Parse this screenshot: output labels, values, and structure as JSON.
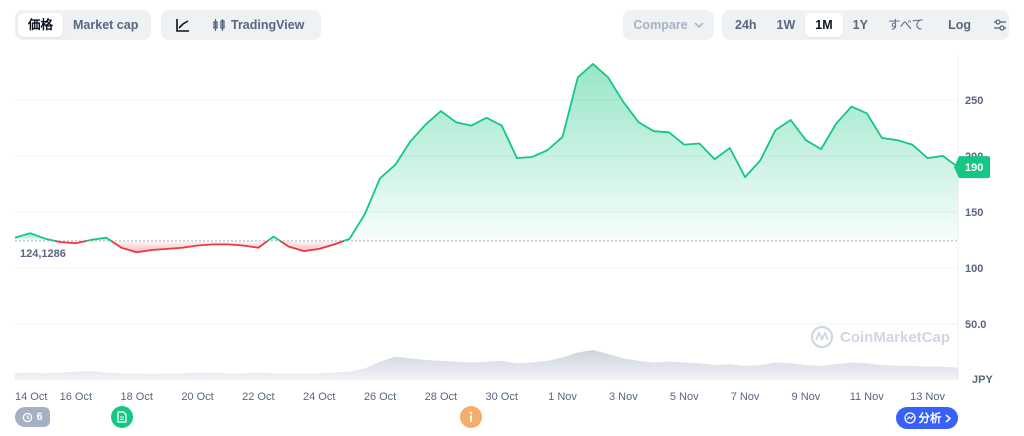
{
  "toolbar": {
    "left_tabs": [
      {
        "label": "価格",
        "active": true
      },
      {
        "label": "Market cap",
        "active": false
      }
    ],
    "view_tabs": [
      {
        "label": "",
        "icon": "line-chart-icon",
        "active": false
      },
      {
        "label": "TradingView",
        "icon": "candlestick-icon",
        "active": false
      }
    ],
    "compare_label": "Compare",
    "range_tabs": [
      {
        "label": "24h",
        "active": false
      },
      {
        "label": "1W",
        "active": false
      },
      {
        "label": "1M",
        "active": true
      },
      {
        "label": "1Y",
        "active": false
      },
      {
        "label": "すべて",
        "active": false
      }
    ],
    "log_label": "Log"
  },
  "events": {
    "history_count": "6",
    "analysis_label": "分析"
  },
  "watermark": "CoinMarketCap",
  "colors": {
    "up": "#16c784",
    "down": "#ea3943",
    "accent": "#3861fb",
    "info": "#f5ad6b"
  },
  "chart_data": {
    "type": "line",
    "currency": "JPY",
    "baseline_label": "124,1286",
    "baseline": 124.1286,
    "current_label": "190",
    "current": 190,
    "ylim": [
      0,
      290
    ],
    "yticks": [
      {
        "value": 50,
        "label": "50.0"
      },
      {
        "value": 100,
        "label": "100"
      },
      {
        "value": 150,
        "label": "150"
      },
      {
        "value": 200,
        "label": "200"
      },
      {
        "value": 250,
        "label": "250"
      }
    ],
    "xlim": [
      "2024-10-14",
      "2024-11-14"
    ],
    "xticks": [
      {
        "date": "2024-10-14",
        "label": "14 Oct"
      },
      {
        "date": "2024-10-16",
        "label": "16 Oct"
      },
      {
        "date": "2024-10-18",
        "label": "18 Oct"
      },
      {
        "date": "2024-10-20",
        "label": "20 Oct"
      },
      {
        "date": "2024-10-22",
        "label": "22 Oct"
      },
      {
        "date": "2024-10-24",
        "label": "24 Oct"
      },
      {
        "date": "2024-10-26",
        "label": "26 Oct"
      },
      {
        "date": "2024-10-28",
        "label": "28 Oct"
      },
      {
        "date": "2024-10-30",
        "label": "30 Oct"
      },
      {
        "date": "2024-11-01",
        "label": "1 Nov"
      },
      {
        "date": "2024-11-03",
        "label": "3 Nov"
      },
      {
        "date": "2024-11-05",
        "label": "5 Nov"
      },
      {
        "date": "2024-11-07",
        "label": "7 Nov"
      },
      {
        "date": "2024-11-09",
        "label": "9 Nov"
      },
      {
        "date": "2024-11-11",
        "label": "11 Nov"
      },
      {
        "date": "2024-11-13",
        "label": "13 Nov"
      }
    ],
    "series": [
      {
        "x": [
          "2024-10-14 00:00",
          "2024-10-14 12:00",
          "2024-10-15 00:00",
          "2024-10-15 12:00",
          "2024-10-16 00:00",
          "2024-10-16 12:00",
          "2024-10-17 00:00",
          "2024-10-17 12:00",
          "2024-10-18 00:00",
          "2024-10-18 12:00",
          "2024-10-19 00:00",
          "2024-10-19 12:00",
          "2024-10-20 00:00",
          "2024-10-20 12:00",
          "2024-10-21 00:00",
          "2024-10-21 12:00",
          "2024-10-22 00:00",
          "2024-10-22 12:00",
          "2024-10-23 00:00",
          "2024-10-23 12:00",
          "2024-10-24 00:00",
          "2024-10-24 12:00",
          "2024-10-25 00:00",
          "2024-10-25 12:00",
          "2024-10-26 00:00",
          "2024-10-26 12:00",
          "2024-10-27 00:00",
          "2024-10-27 12:00",
          "2024-10-28 00:00",
          "2024-10-28 12:00",
          "2024-10-29 00:00",
          "2024-10-29 12:00",
          "2024-10-30 00:00",
          "2024-10-30 12:00",
          "2024-10-31 00:00",
          "2024-10-31 12:00",
          "2024-11-01 00:00",
          "2024-11-01 12:00",
          "2024-11-02 00:00",
          "2024-11-02 12:00",
          "2024-11-03 00:00",
          "2024-11-03 12:00",
          "2024-11-04 00:00",
          "2024-11-04 12:00",
          "2024-11-05 00:00",
          "2024-11-05 12:00",
          "2024-11-06 00:00",
          "2024-11-06 12:00",
          "2024-11-07 00:00",
          "2024-11-07 12:00",
          "2024-11-08 00:00",
          "2024-11-08 12:00",
          "2024-11-09 00:00",
          "2024-11-09 12:00",
          "2024-11-10 00:00",
          "2024-11-10 12:00",
          "2024-11-11 00:00",
          "2024-11-11 12:00",
          "2024-11-12 00:00",
          "2024-11-12 12:00",
          "2024-11-13 00:00",
          "2024-11-13 12:00",
          "2024-11-14 00:00"
        ],
        "values": [
          127,
          131,
          126,
          123,
          122,
          125,
          127,
          118,
          114,
          116,
          117,
          118,
          120,
          121,
          121,
          120,
          118,
          128,
          119,
          115,
          117,
          121,
          126,
          148,
          180,
          192,
          213,
          228,
          240,
          230,
          227,
          234,
          227,
          198,
          199,
          205,
          217,
          270,
          282,
          270,
          248,
          230,
          222,
          221,
          210,
          211,
          197,
          207,
          181,
          196,
          223,
          232,
          214,
          206,
          229,
          244,
          238,
          216,
          214,
          210,
          198,
          200,
          190
        ]
      }
    ],
    "volume": [
      8,
      9,
      8,
      9,
      10,
      11,
      9,
      8,
      8,
      7,
      8,
      8,
      9,
      9,
      8,
      8,
      9,
      8,
      8,
      8,
      8,
      9,
      10,
      14,
      22,
      28,
      26,
      24,
      23,
      22,
      21,
      22,
      23,
      20,
      21,
      23,
      27,
      33,
      36,
      31,
      26,
      23,
      21,
      22,
      21,
      20,
      18,
      19,
      17,
      18,
      21,
      20,
      18,
      17,
      19,
      21,
      20,
      18,
      17,
      17,
      16,
      16,
      15
    ]
  }
}
